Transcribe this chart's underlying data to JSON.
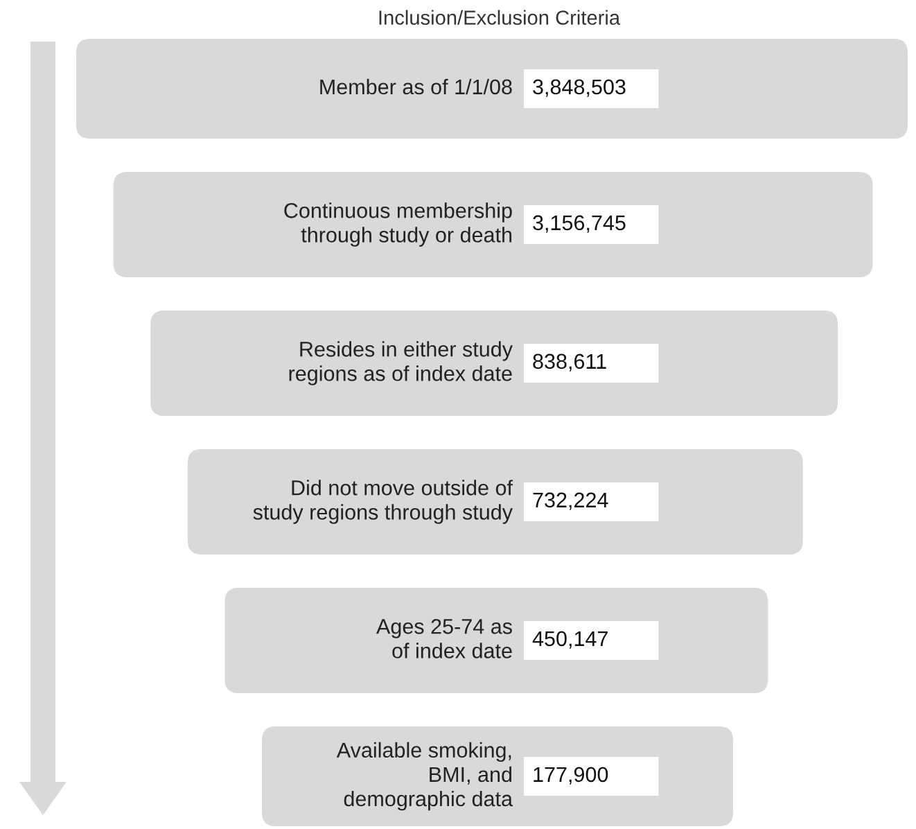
{
  "chart_data": {
    "type": "other",
    "title": "Inclusion/Exclusion Criteria",
    "categories": [
      "Member as of 1/1/08",
      "Continuous membership\nthrough study or death",
      "Resides in either study\nregions as of index date",
      "Did not move outside of\nstudy regions through study",
      "Ages 25-74 as\nof index date",
      "Available smoking,\nBMI, and\ndemographic data"
    ],
    "values": [
      3848503,
      3156745,
      838611,
      732224,
      450147,
      177900
    ],
    "value_labels": [
      "3,848,503",
      "3,156,745",
      "838,611",
      "732,224",
      "450,147",
      "177,900"
    ]
  }
}
